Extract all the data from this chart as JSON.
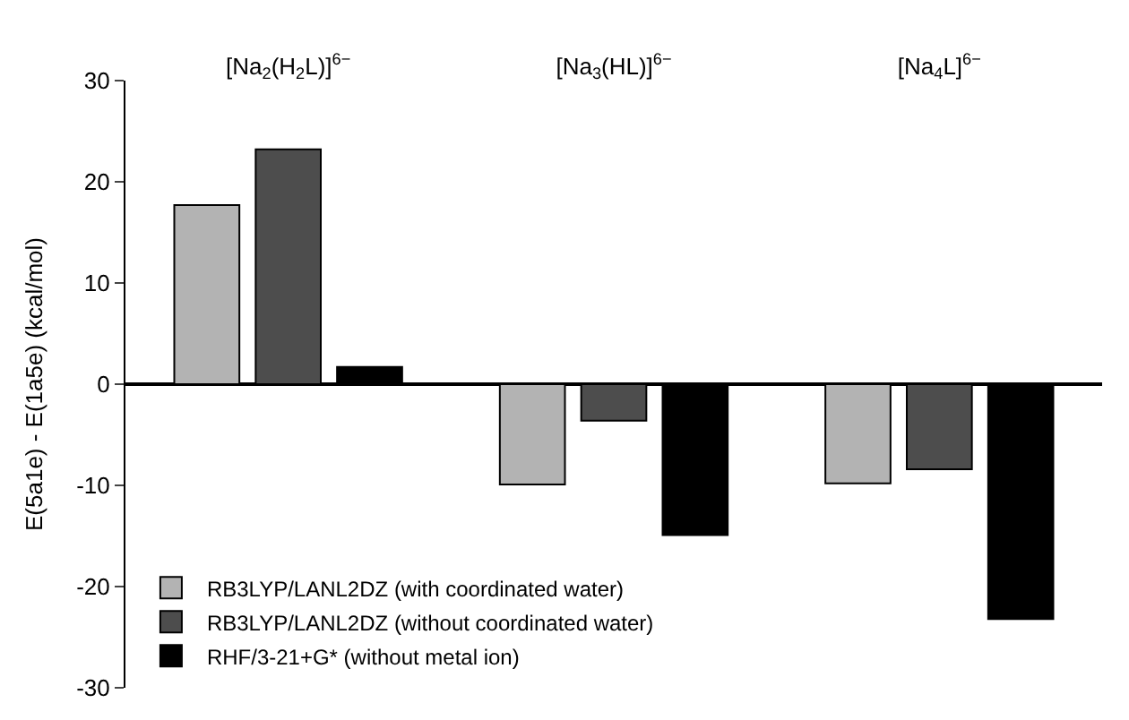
{
  "chart_data": {
    "type": "bar",
    "ylabel": "E(5a1e) - E(1a5e) (kcal/mol)",
    "categories": [
      "[Na$_{2}$(H$_{2}$L)]$^{6−}$",
      "[Na$_{3}$(HL)]$^{6−}$",
      "[Na$_{4}$L]$^{6−}$"
    ],
    "series": [
      {
        "name": "RB3LYP/LANL2DZ (with coordinated water)",
        "color": "#b3b3b3",
        "values": [
          17.7,
          -9.9,
          -9.8
        ]
      },
      {
        "name": "RB3LYP/LANL2DZ (without coordinated water)",
        "color": "#4d4d4d",
        "values": [
          23.2,
          -3.6,
          -8.4
        ]
      },
      {
        "name": "RHF/3-21+G* (without metal ion)",
        "color": "#000000",
        "values": [
          1.7,
          -14.9,
          -23.2
        ]
      }
    ],
    "ylim": [
      -30,
      30
    ],
    "yticks": [
      -30,
      -20,
      -10,
      0,
      10,
      20,
      30
    ],
    "legend": "bottom left"
  }
}
